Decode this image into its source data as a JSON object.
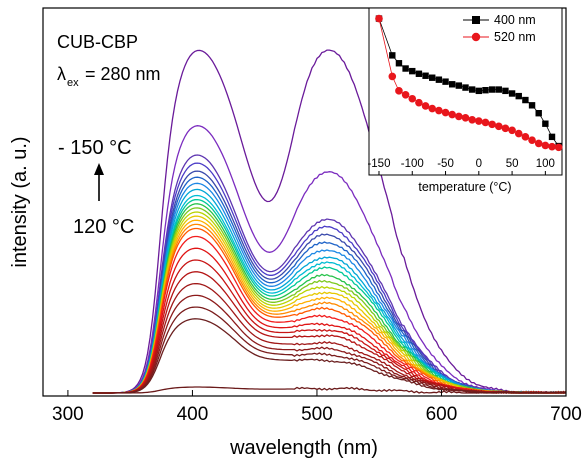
{
  "chart_data": [
    {
      "type": "line",
      "title": "",
      "xlabel": "wavelength (nm)",
      "ylabel": "intensity (a. u.)",
      "xlim": [
        280,
        700
      ],
      "ylim": [
        0,
        1.0
      ],
      "xticks": [
        300,
        400,
        500,
        600,
        700
      ],
      "grid": false,
      "annotations": {
        "sample": "CUB-CBP",
        "lambda_symbol": "λ",
        "lambda_sub": "ex",
        "excitation": " = 280 nm",
        "temp_high": "- 150 °C",
        "temp_low": "120 °C"
      },
      "x_range_data": [
        320,
        700
      ],
      "peak1_nm": 400,
      "peak2_nm": 510,
      "dip_nm": 462,
      "series_note": "spectra from -150 °C (top, violet) to 120 °C (bottom, dark red)",
      "series": [
        {
          "color": "#6a1b9a",
          "peak1": 0.85,
          "peak2": 0.92,
          "dip": 0.33
        },
        {
          "color": "#7b2cbf",
          "peak1": 0.67,
          "peak2": 0.59,
          "dip": 0.27
        },
        {
          "color": "#5e35b1",
          "peak1": 0.6,
          "peak2": 0.46,
          "dip": 0.25
        },
        {
          "color": "#4b3cc7",
          "peak1": 0.58,
          "peak2": 0.44,
          "dip": 0.245
        },
        {
          "color": "#3949ab",
          "peak1": 0.56,
          "peak2": 0.42,
          "dip": 0.24
        },
        {
          "color": "#1e63c8",
          "peak1": 0.545,
          "peak2": 0.4,
          "dip": 0.235
        },
        {
          "color": "#1e88e5",
          "peak1": 0.53,
          "peak2": 0.38,
          "dip": 0.23
        },
        {
          "color": "#00a6d6",
          "peak1": 0.515,
          "peak2": 0.36,
          "dip": 0.225
        },
        {
          "color": "#00bcd4",
          "peak1": 0.5,
          "peak2": 0.345,
          "dip": 0.22
        },
        {
          "color": "#00c896",
          "peak1": 0.49,
          "peak2": 0.33,
          "dip": 0.215
        },
        {
          "color": "#26c24a",
          "peak1": 0.48,
          "peak2": 0.31,
          "dip": 0.21
        },
        {
          "color": "#7cc81e",
          "peak1": 0.47,
          "peak2": 0.295,
          "dip": 0.205
        },
        {
          "color": "#b8d400",
          "peak1": 0.46,
          "peak2": 0.28,
          "dip": 0.2
        },
        {
          "color": "#e6c800",
          "peak1": 0.45,
          "peak2": 0.265,
          "dip": 0.195
        },
        {
          "color": "#ffb000",
          "peak1": 0.44,
          "peak2": 0.25,
          "dip": 0.19
        },
        {
          "color": "#ff8a00",
          "peak1": 0.43,
          "peak2": 0.235,
          "dip": 0.185
        },
        {
          "color": "#ff5a00",
          "peak1": 0.42,
          "peak2": 0.22,
          "dip": 0.18
        },
        {
          "color": "#f21d1d",
          "peak1": 0.4,
          "peak2": 0.2,
          "dip": 0.17
        },
        {
          "color": "#e01414",
          "peak1": 0.37,
          "peak2": 0.18,
          "dip": 0.16
        },
        {
          "color": "#c81414",
          "peak1": 0.34,
          "peak2": 0.165,
          "dip": 0.15
        },
        {
          "color": "#b41414",
          "peak1": 0.31,
          "peak2": 0.15,
          "dip": 0.14
        },
        {
          "color": "#a01818",
          "peak1": 0.28,
          "peak2": 0.13,
          "dip": 0.125
        },
        {
          "color": "#8c1a1a",
          "peak1": 0.25,
          "peak2": 0.115,
          "dip": 0.11
        },
        {
          "color": "#7a1c1c",
          "peak1": 0.22,
          "peak2": 0.1,
          "dip": 0.1
        },
        {
          "color": "#6b1f1f",
          "peak1": 0.19,
          "peak2": 0.085,
          "dip": 0.085
        },
        {
          "color": "#6a1a1a",
          "peak1": 0.015,
          "peak2": 0.012,
          "dip": 0.01
        }
      ]
    },
    {
      "type": "line",
      "title": "",
      "xlabel": "temperature (°C)",
      "ylabel": "",
      "xlim": [
        -165,
        125
      ],
      "ylim": [
        0,
        1.05
      ],
      "xticks": [
        -150,
        -100,
        -50,
        0,
        50,
        100
      ],
      "legend_position": "top-right",
      "series": [
        {
          "name": "400 nm",
          "color": "#000000",
          "marker": "square",
          "x": [
            -150,
            -130,
            -120,
            -110,
            -100,
            -90,
            -80,
            -70,
            -60,
            -50,
            -40,
            -30,
            -20,
            -10,
            0,
            10,
            20,
            30,
            40,
            50,
            60,
            70,
            80,
            90,
            100,
            110,
            120
          ],
          "y": [
            1.0,
            0.72,
            0.66,
            0.62,
            0.6,
            0.58,
            0.565,
            0.55,
            0.535,
            0.52,
            0.5,
            0.49,
            0.475,
            0.46,
            0.45,
            0.455,
            0.46,
            0.46,
            0.45,
            0.43,
            0.41,
            0.38,
            0.34,
            0.28,
            0.2,
            0.1,
            0.03
          ]
        },
        {
          "name": "520 nm",
          "color": "#e8161c",
          "marker": "circle",
          "x": [
            -150,
            -130,
            -120,
            -110,
            -100,
            -90,
            -80,
            -70,
            -60,
            -50,
            -40,
            -30,
            -20,
            -10,
            0,
            10,
            20,
            30,
            40,
            50,
            60,
            70,
            80,
            90,
            100,
            110,
            120
          ],
          "y": [
            1.0,
            0.56,
            0.45,
            0.42,
            0.39,
            0.36,
            0.335,
            0.315,
            0.3,
            0.285,
            0.27,
            0.255,
            0.245,
            0.23,
            0.22,
            0.21,
            0.195,
            0.18,
            0.165,
            0.15,
            0.125,
            0.1,
            0.075,
            0.05,
            0.035,
            0.025,
            0.02
          ]
        }
      ]
    }
  ]
}
